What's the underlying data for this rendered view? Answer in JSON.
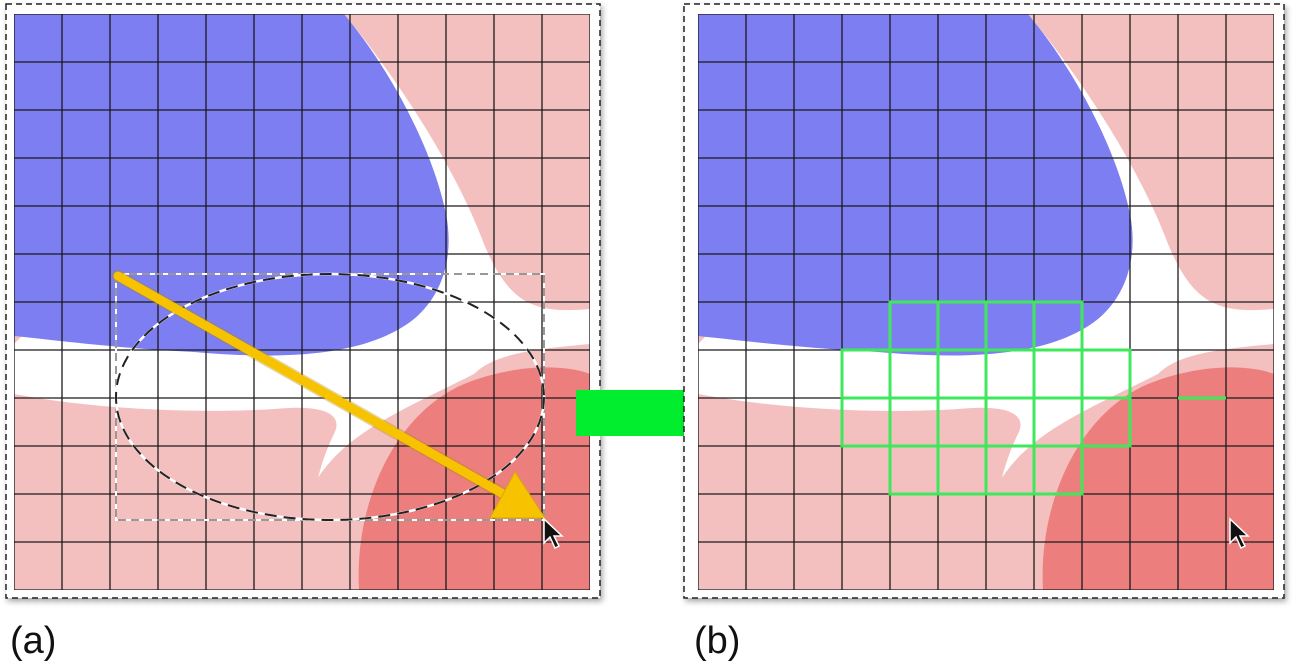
{
  "panels": [
    {
      "id": "a",
      "label": "(a)"
    },
    {
      "id": "b",
      "label": "(b)"
    }
  ],
  "grid": {
    "columns": 12,
    "rows": 12
  },
  "selection": {
    "highlighted_cells": 22
  },
  "colors": {
    "blue_region": "#7d7ef2",
    "light_red_region": "#f4c0bf",
    "dark_red_region": "#ec7f7e",
    "separator": "#ffffff",
    "grid_line": "#1a1a1a",
    "drag_arrow": "#f7c300",
    "transition_arrow": "#00ee2e",
    "highlight_cells": "#3ee85a",
    "frame_dash": "#222222",
    "cursor": "#111111"
  },
  "icons": {
    "cursor": "mouse-pointer-icon",
    "drag": "yellow-drag-arrow-icon",
    "transition": "green-transition-arrow-icon"
  }
}
